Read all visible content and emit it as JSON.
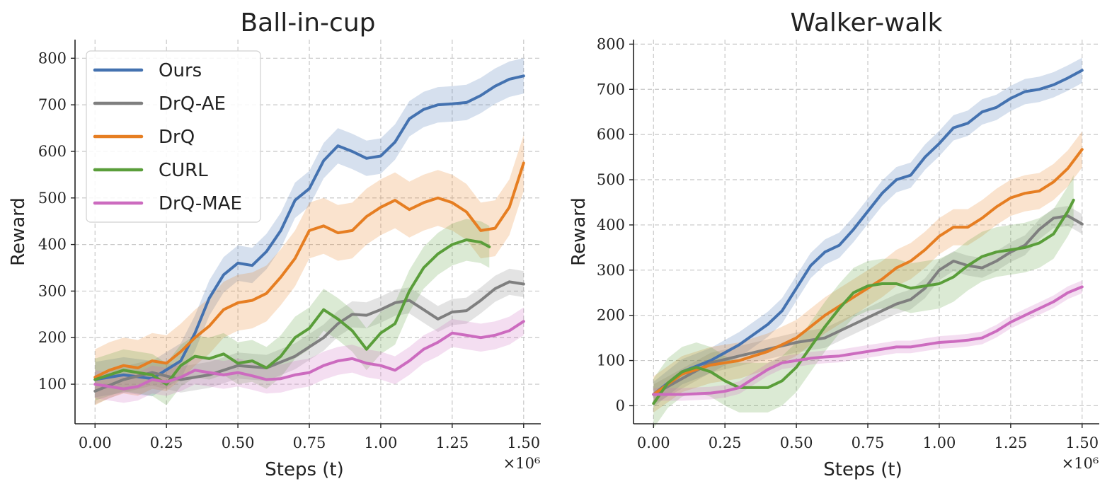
{
  "chart_data": [
    {
      "type": "line",
      "title": "Ball-in-cup",
      "xlabel": "Steps (t)",
      "ylabel": "Reward",
      "x_offset_label": "×10⁶",
      "xlim": [
        -0.07,
        1.56
      ],
      "ylim": [
        15,
        840
      ],
      "xticks": [
        0.0,
        0.25,
        0.5,
        0.75,
        1.0,
        1.25,
        1.5
      ],
      "xtick_labels": [
        "0.00",
        "0.25",
        "0.50",
        "0.75",
        "1.00",
        "1.25",
        "1.50"
      ],
      "yticks": [
        100,
        200,
        300,
        400,
        500,
        600,
        700,
        800
      ],
      "ytick_labels": [
        "100",
        "200",
        "300",
        "400",
        "500",
        "600",
        "700",
        "800"
      ],
      "grid": true,
      "legend": "top-left",
      "series": [
        {
          "name": "Ours",
          "color": "#4472b0",
          "band": 38,
          "x": [
            0,
            0.1,
            0.2,
            0.3,
            0.35,
            0.4,
            0.45,
            0.5,
            0.55,
            0.6,
            0.65,
            0.7,
            0.75,
            0.8,
            0.85,
            0.9,
            0.95,
            1.0,
            1.05,
            1.1,
            1.15,
            1.2,
            1.25,
            1.3,
            1.35,
            1.4,
            1.45,
            1.5
          ],
          "y": [
            110,
            120,
            112,
            150,
            210,
            285,
            335,
            360,
            355,
            385,
            430,
            495,
            520,
            580,
            612,
            600,
            585,
            590,
            620,
            670,
            690,
            700,
            702,
            705,
            720,
            740,
            755,
            762
          ]
        },
        {
          "name": "DrQ-AE",
          "color": "#7f7f7f",
          "band": 28,
          "x": [
            0,
            0.1,
            0.2,
            0.3,
            0.4,
            0.5,
            0.6,
            0.7,
            0.8,
            0.85,
            0.9,
            0.95,
            1.0,
            1.05,
            1.1,
            1.15,
            1.2,
            1.25,
            1.3,
            1.35,
            1.4,
            1.45,
            1.5
          ],
          "y": [
            85,
            110,
            125,
            110,
            120,
            140,
            135,
            160,
            200,
            230,
            250,
            248,
            260,
            275,
            280,
            260,
            240,
            255,
            258,
            280,
            305,
            320,
            315
          ]
        },
        {
          "name": "DrQ",
          "color": "#e67e22",
          "band": 60,
          "x": [
            0,
            0.05,
            0.1,
            0.15,
            0.2,
            0.25,
            0.3,
            0.35,
            0.4,
            0.45,
            0.5,
            0.55,
            0.6,
            0.65,
            0.7,
            0.75,
            0.8,
            0.85,
            0.9,
            0.95,
            1.0,
            1.05,
            1.1,
            1.15,
            1.2,
            1.25,
            1.3,
            1.35,
            1.4,
            1.45,
            1.5
          ],
          "y": [
            115,
            130,
            140,
            135,
            150,
            145,
            170,
            200,
            225,
            260,
            275,
            280,
            295,
            330,
            370,
            430,
            440,
            425,
            430,
            460,
            480,
            495,
            475,
            490,
            500,
            490,
            470,
            430,
            435,
            480,
            575
          ]
        },
        {
          "name": "CURL",
          "color": "#5a9e3a",
          "band": 45,
          "x": [
            0,
            0.1,
            0.2,
            0.25,
            0.3,
            0.35,
            0.4,
            0.45,
            0.5,
            0.55,
            0.6,
            0.65,
            0.7,
            0.75,
            0.8,
            0.85,
            0.9,
            0.95,
            1.0,
            1.05,
            1.1,
            1.15,
            1.2,
            1.25,
            1.3,
            1.35,
            1.38
          ],
          "y": [
            110,
            130,
            120,
            100,
            140,
            160,
            155,
            165,
            145,
            150,
            135,
            160,
            200,
            220,
            260,
            240,
            215,
            175,
            210,
            230,
            300,
            350,
            380,
            400,
            410,
            405,
            395
          ]
        },
        {
          "name": "DrQ-MAE",
          "color": "#cc6bbf",
          "band": 30,
          "x": [
            0,
            0.05,
            0.1,
            0.15,
            0.2,
            0.25,
            0.3,
            0.35,
            0.4,
            0.45,
            0.5,
            0.55,
            0.6,
            0.65,
            0.7,
            0.75,
            0.8,
            0.85,
            0.9,
            0.95,
            1.0,
            1.05,
            1.1,
            1.15,
            1.2,
            1.25,
            1.3,
            1.35,
            1.4,
            1.45,
            1.5
          ],
          "y": [
            100,
            95,
            90,
            95,
            110,
            105,
            115,
            130,
            125,
            120,
            125,
            118,
            110,
            112,
            120,
            125,
            140,
            150,
            155,
            145,
            140,
            130,
            150,
            175,
            190,
            210,
            205,
            200,
            205,
            215,
            235
          ]
        }
      ]
    },
    {
      "type": "line",
      "title": "Walker-walk",
      "xlabel": "Steps (t)",
      "ylabel": "Reward",
      "x_offset_label": "×10⁶",
      "xlim": [
        -0.07,
        1.56
      ],
      "ylim": [
        -40,
        810
      ],
      "xticks": [
        0.0,
        0.25,
        0.5,
        0.75,
        1.0,
        1.25,
        1.5
      ],
      "xtick_labels": [
        "0.00",
        "0.25",
        "0.50",
        "0.75",
        "1.00",
        "1.25",
        "1.50"
      ],
      "yticks": [
        0,
        100,
        200,
        300,
        400,
        500,
        600,
        700,
        800
      ],
      "ytick_labels": [
        "0",
        "100",
        "200",
        "300",
        "400",
        "500",
        "600",
        "700",
        "800"
      ],
      "grid": true,
      "legend": "none",
      "series": [
        {
          "name": "Ours",
          "color": "#4472b0",
          "band": 28,
          "x": [
            0,
            0.1,
            0.2,
            0.3,
            0.4,
            0.45,
            0.5,
            0.55,
            0.6,
            0.65,
            0.7,
            0.75,
            0.8,
            0.85,
            0.9,
            0.95,
            1.0,
            1.05,
            1.1,
            1.15,
            1.2,
            1.25,
            1.3,
            1.35,
            1.4,
            1.45,
            1.5
          ],
          "y": [
            25,
            75,
            100,
            135,
            180,
            210,
            260,
            310,
            340,
            355,
            390,
            430,
            470,
            500,
            510,
            550,
            580,
            615,
            625,
            650,
            660,
            680,
            695,
            700,
            710,
            725,
            742
          ]
        },
        {
          "name": "DrQ-AE",
          "color": "#7f7f7f",
          "band": 22,
          "x": [
            0,
            0.1,
            0.2,
            0.3,
            0.4,
            0.5,
            0.6,
            0.7,
            0.8,
            0.85,
            0.9,
            0.95,
            1.0,
            1.05,
            1.1,
            1.15,
            1.2,
            1.25,
            1.3,
            1.35,
            1.4,
            1.45,
            1.5
          ],
          "y": [
            25,
            60,
            95,
            110,
            125,
            140,
            150,
            180,
            210,
            225,
            235,
            260,
            300,
            320,
            310,
            305,
            320,
            340,
            355,
            390,
            415,
            420,
            402
          ]
        },
        {
          "name": "DrQ",
          "color": "#e67e22",
          "band": 40,
          "x": [
            0,
            0.1,
            0.2,
            0.3,
            0.4,
            0.5,
            0.6,
            0.7,
            0.8,
            0.85,
            0.9,
            0.95,
            1.0,
            1.05,
            1.1,
            1.15,
            1.2,
            1.25,
            1.3,
            1.35,
            1.4,
            1.45,
            1.5
          ],
          "y": [
            25,
            70,
            90,
            100,
            120,
            150,
            200,
            240,
            280,
            305,
            320,
            345,
            375,
            395,
            395,
            415,
            440,
            460,
            470,
            475,
            495,
            525,
            567
          ]
        },
        {
          "name": "CURL",
          "color": "#5a9e3a",
          "band": 55,
          "x": [
            0,
            0.05,
            0.1,
            0.15,
            0.2,
            0.25,
            0.3,
            0.35,
            0.4,
            0.45,
            0.5,
            0.55,
            0.6,
            0.65,
            0.7,
            0.75,
            0.8,
            0.85,
            0.9,
            0.95,
            1.0,
            1.05,
            1.1,
            1.15,
            1.2,
            1.25,
            1.3,
            1.35,
            1.4,
            1.45,
            1.47
          ],
          "y": [
            5,
            50,
            75,
            85,
            75,
            55,
            40,
            40,
            40,
            55,
            85,
            130,
            175,
            215,
            250,
            265,
            270,
            270,
            260,
            265,
            270,
            285,
            310,
            330,
            340,
            345,
            350,
            360,
            380,
            430,
            455
          ]
        },
        {
          "name": "DrQ-MAE",
          "color": "#cc6bbf",
          "band": 14,
          "x": [
            0,
            0.1,
            0.2,
            0.25,
            0.3,
            0.35,
            0.4,
            0.45,
            0.5,
            0.55,
            0.6,
            0.65,
            0.7,
            0.75,
            0.8,
            0.85,
            0.9,
            0.95,
            1.0,
            1.05,
            1.1,
            1.15,
            1.2,
            1.25,
            1.3,
            1.35,
            1.4,
            1.45,
            1.5
          ],
          "y": [
            25,
            25,
            28,
            32,
            40,
            60,
            80,
            95,
            100,
            105,
            108,
            110,
            115,
            120,
            125,
            130,
            130,
            135,
            140,
            142,
            145,
            150,
            165,
            185,
            200,
            215,
            230,
            250,
            263
          ]
        }
      ]
    }
  ]
}
